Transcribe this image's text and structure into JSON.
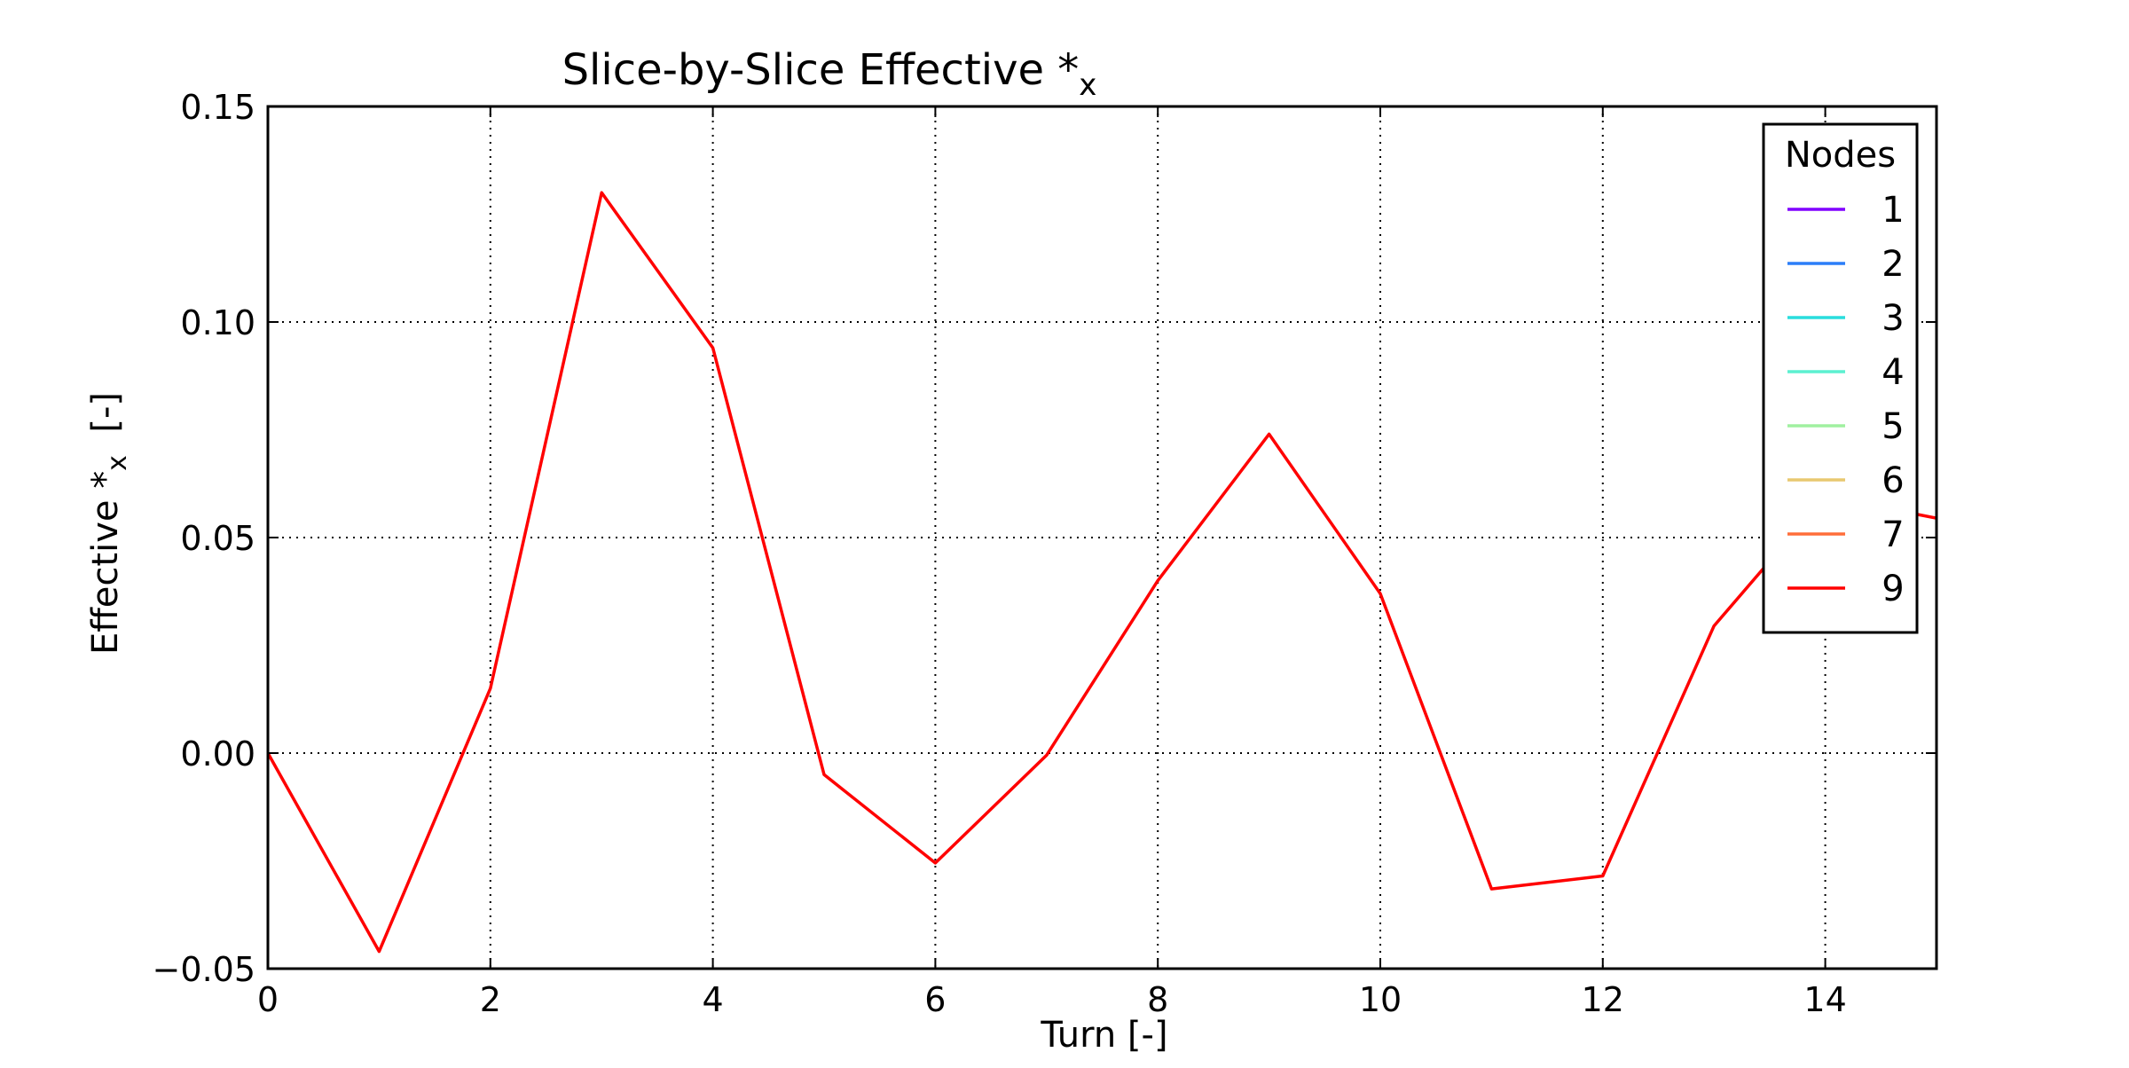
{
  "chart_data": {
    "type": "line",
    "title": "Slice-by-Slice Effective *",
    "title_subscript": "x",
    "xlabel": "Turn [-]",
    "ylabel": "Effective *",
    "ylabel_subscript": "x",
    "ylabel_suffix": "  [-]",
    "xlim": [
      0,
      15
    ],
    "ylim": [
      -0.05,
      0.15
    ],
    "xticks": [
      0,
      2,
      4,
      6,
      8,
      10,
      12,
      14
    ],
    "xtick_labels": [
      "0",
      "2",
      "4",
      "6",
      "8",
      "10",
      "12",
      "14"
    ],
    "yticks": [
      -0.05,
      0.0,
      0.05,
      0.1,
      0.15
    ],
    "ytick_labels": [
      "−0.05",
      "0.00",
      "0.05",
      "0.10",
      "0.15"
    ],
    "grid": true,
    "legend": {
      "title": "Nodes",
      "position": "top-right",
      "entries": [
        {
          "label": "1",
          "color": "#8000ff"
        },
        {
          "label": "2",
          "color": "#2c7ef8"
        },
        {
          "label": "3",
          "color": "#2adddd"
        },
        {
          "label": "4",
          "color": "#5cf0d0"
        },
        {
          "label": "5",
          "color": "#a0f0a0"
        },
        {
          "label": "6",
          "color": "#e8c870"
        },
        {
          "label": "7",
          "color": "#ff6e3a"
        },
        {
          "label": "9",
          "color": "#ff0000"
        }
      ]
    },
    "series": [
      {
        "name": "9",
        "color": "#ff0000",
        "x": [
          0,
          1,
          2,
          3,
          4,
          5,
          6,
          7,
          8,
          9,
          10,
          11,
          12,
          13,
          14,
          15
        ],
        "y": [
          0.0,
          -0.046,
          0.015,
          0.13,
          0.094,
          -0.005,
          -0.0255,
          -0.0005,
          0.04,
          0.074,
          0.037,
          -0.0315,
          -0.0285,
          0.0295,
          0.0595,
          0.0545
        ]
      }
    ]
  }
}
